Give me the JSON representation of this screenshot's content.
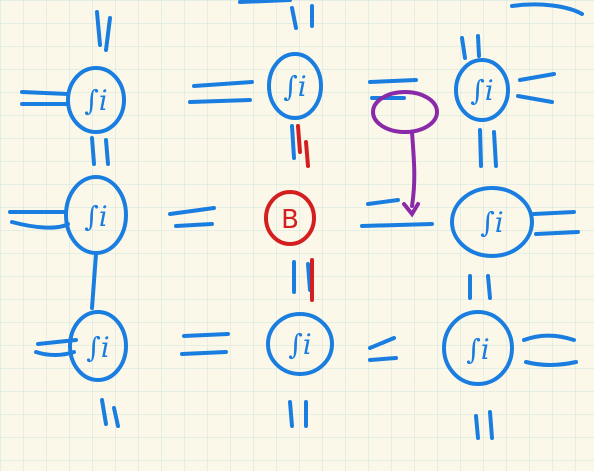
{
  "diagram": {
    "description_free": true,
    "colors": {
      "paper": "#fbf8ea",
      "grid": "#cfe3d9",
      "ink_blue": "#1a7de0",
      "ink_red": "#d31f1f",
      "ink_purple": "#8a2aa8"
    },
    "nodes": [
      {
        "id": "n00",
        "label": "∫i"
      },
      {
        "id": "n01",
        "label": "∫i"
      },
      {
        "id": "n02",
        "label": "∫i"
      },
      {
        "id": "n10",
        "label": "∫i"
      },
      {
        "id": "center",
        "label": "B"
      },
      {
        "id": "n12",
        "label": "∫i"
      },
      {
        "id": "n20",
        "label": "∫i"
      },
      {
        "id": "n21",
        "label": "∫i"
      },
      {
        "id": "n22",
        "label": "∫i"
      }
    ]
  }
}
